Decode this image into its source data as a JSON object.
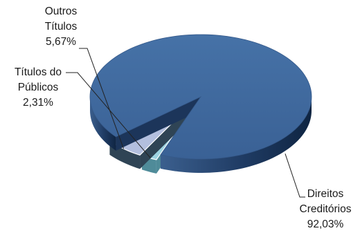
{
  "chart_data": {
    "type": "pie",
    "title": "",
    "slices": [
      {
        "label_lines": [
          "Direitos",
          "Creditórios"
        ],
        "value_label": "92,03%",
        "value": 92.03,
        "color": "#3f6698"
      },
      {
        "label_lines": [
          "Títulos do",
          "Públicos"
        ],
        "value_label": "2,31%",
        "value": 2.31,
        "color": "#9dd3e1"
      },
      {
        "label_lines": [
          "Outros",
          "Títulos"
        ],
        "value_label": "5,67%",
        "value": 5.67,
        "color": "#b3bfde"
      }
    ],
    "style": "3d-exploded",
    "legend": "none"
  }
}
